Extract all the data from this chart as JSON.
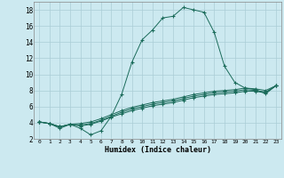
{
  "title": "",
  "xlabel": "Humidex (Indice chaleur)",
  "background_color": "#cce9f0",
  "grid_color": "#aacdd6",
  "line_color": "#1a6b5a",
  "x_values": [
    0,
    1,
    2,
    3,
    4,
    5,
    6,
    7,
    8,
    9,
    10,
    11,
    12,
    13,
    14,
    15,
    16,
    17,
    18,
    19,
    20,
    21,
    22,
    23
  ],
  "series1": [
    4.1,
    3.9,
    3.3,
    3.8,
    3.3,
    2.5,
    3.0,
    4.8,
    7.5,
    11.5,
    14.3,
    15.5,
    17.0,
    17.2,
    18.3,
    18.0,
    17.7,
    15.2,
    11.0,
    9.0,
    8.3,
    8.1,
    7.6,
    8.6
  ],
  "series2": [
    4.1,
    3.9,
    3.5,
    3.8,
    3.6,
    3.8,
    4.2,
    4.7,
    5.1,
    5.5,
    5.8,
    6.1,
    6.3,
    6.5,
    6.8,
    7.1,
    7.3,
    7.5,
    7.6,
    7.7,
    7.9,
    7.9,
    7.7,
    8.6
  ],
  "series3": [
    4.1,
    3.9,
    3.5,
    3.8,
    3.7,
    3.9,
    4.3,
    4.8,
    5.3,
    5.7,
    6.0,
    6.3,
    6.5,
    6.7,
    7.0,
    7.3,
    7.5,
    7.7,
    7.8,
    7.9,
    8.1,
    8.0,
    7.8,
    8.6
  ],
  "series4": [
    4.1,
    3.9,
    3.5,
    3.8,
    3.9,
    4.1,
    4.5,
    5.0,
    5.5,
    5.9,
    6.2,
    6.5,
    6.7,
    6.9,
    7.2,
    7.5,
    7.7,
    7.9,
    8.0,
    8.1,
    8.3,
    8.2,
    8.0,
    8.6
  ],
  "ylim": [
    2,
    19
  ],
  "yticks": [
    2,
    4,
    6,
    8,
    10,
    12,
    14,
    16,
    18
  ],
  "xlim": [
    -0.5,
    23.5
  ],
  "xtick_labels": [
    "0",
    "1",
    "2",
    "3",
    "4",
    "5",
    "6",
    "7",
    "8",
    "9",
    "10",
    "11",
    "12",
    "13",
    "14",
    "15",
    "16",
    "17",
    "18",
    "19",
    "20",
    "21",
    "22",
    "23"
  ]
}
